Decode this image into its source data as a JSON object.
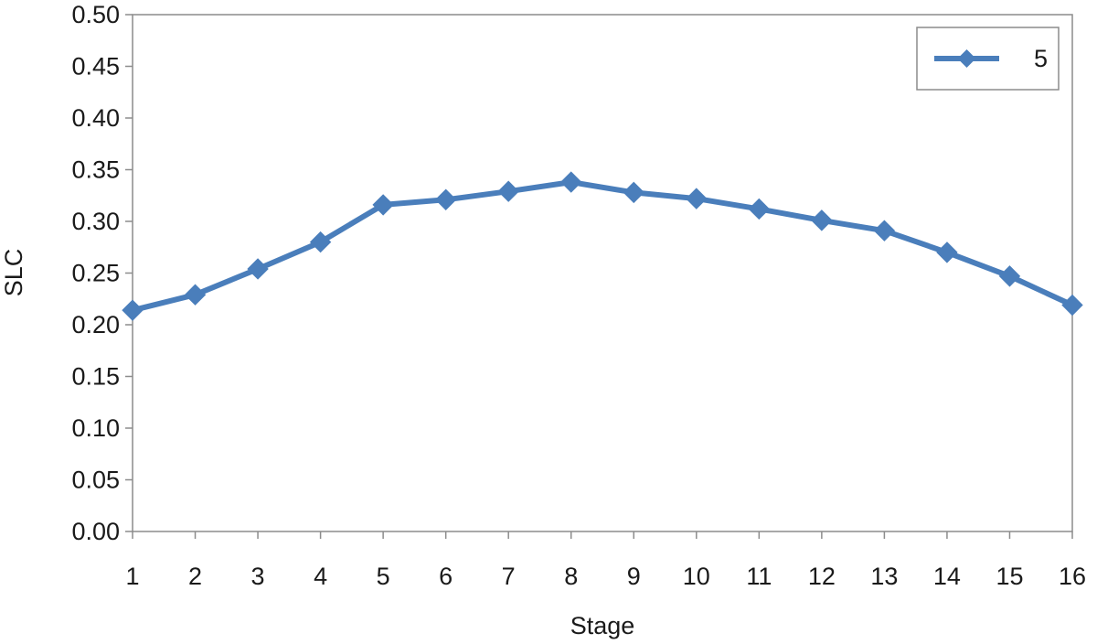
{
  "chart_data": {
    "type": "line",
    "title": "",
    "xlabel": "Stage",
    "ylabel": "SLC",
    "categories": [
      "1",
      "2",
      "3",
      "4",
      "5",
      "6",
      "7",
      "8",
      "9",
      "10",
      "11",
      "12",
      "13",
      "14",
      "15",
      "16"
    ],
    "y_ticks": [
      "0.00",
      "0.05",
      "0.10",
      "0.15",
      "0.20",
      "0.25",
      "0.30",
      "0.35",
      "0.40",
      "0.45",
      "0.50"
    ],
    "ylim": [
      0,
      0.5
    ],
    "grid": false,
    "legend_position": "top-right",
    "series": [
      {
        "name": "5",
        "color": "#4a7ebb",
        "marker": "diamond",
        "values": [
          0.214,
          0.229,
          0.254,
          0.28,
          0.316,
          0.321,
          0.329,
          0.338,
          0.328,
          0.322,
          0.312,
          0.301,
          0.291,
          0.27,
          0.247,
          0.219
        ]
      }
    ]
  }
}
